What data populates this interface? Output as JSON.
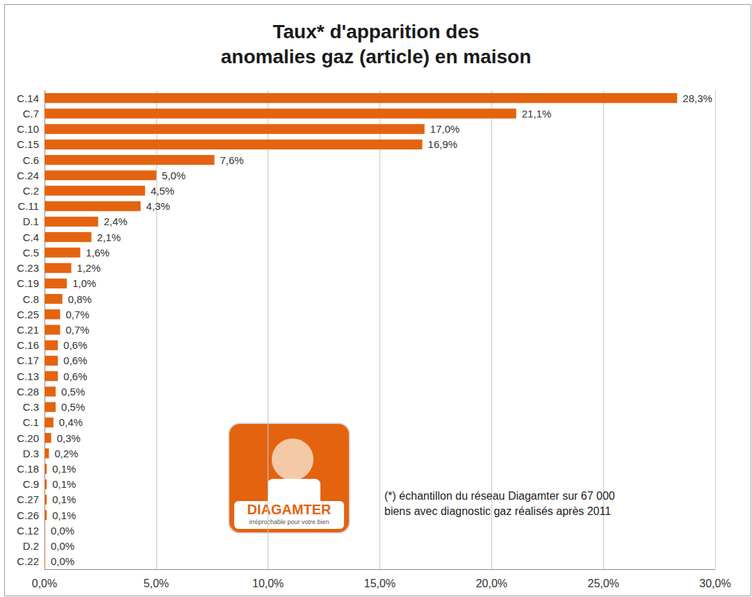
{
  "chart_data": {
    "type": "bar",
    "orientation": "horizontal",
    "title": "Taux* d'apparition des\nanomalies gaz (article) en maison",
    "annotations": [
      "(*) échantillon du réseau Diagamter sur 67 000 biens avec diagnostic gaz réalisés après 2011",
      "DIAGAMTER",
      "irréprochable pour votre bien"
    ],
    "categories": [
      "C.14",
      "C.7",
      "C.10",
      "C.15",
      "C.6",
      "C.24",
      "C.2",
      "C.11",
      "D.1",
      "C.4",
      "C.5",
      "C.23",
      "C.19",
      "C.8",
      "C.25",
      "C.21",
      "C.16",
      "C.17",
      "C.13",
      "C.28",
      "C.3",
      "C.1",
      "C.20",
      "D.3",
      "C.18",
      "C.9",
      "C.27",
      "C.26",
      "C.12",
      "D.2",
      "C.22"
    ],
    "values": [
      28.3,
      21.1,
      17.0,
      16.9,
      7.6,
      5.0,
      4.5,
      4.3,
      2.4,
      2.1,
      1.6,
      1.2,
      1.0,
      0.8,
      0.7,
      0.7,
      0.6,
      0.6,
      0.6,
      0.5,
      0.5,
      0.4,
      0.3,
      0.2,
      0.1,
      0.1,
      0.1,
      0.1,
      0.03,
      0.03,
      0.03
    ],
    "value_labels": [
      "28,3%",
      "21,1%",
      "17,0%",
      "16,9%",
      "7,6%",
      "5,0%",
      "4,5%",
      "4,3%",
      "2,4%",
      "2,1%",
      "1,6%",
      "1,2%",
      "1,0%",
      "0,8%",
      "0,7%",
      "0,7%",
      "0,6%",
      "0,6%",
      "0,6%",
      "0,5%",
      "0,5%",
      "0,4%",
      "0,3%",
      "0,2%",
      "0,1%",
      "0,1%",
      "0,1%",
      "0,1%",
      "0,0%",
      "0,0%",
      "0,0%"
    ],
    "color": "#e4630f",
    "xlim": [
      0,
      30
    ],
    "xticks": [
      {
        "value": 0,
        "label": "0,0%"
      },
      {
        "value": 5,
        "label": "5,0%"
      },
      {
        "value": 10,
        "label": "10,0%"
      },
      {
        "value": 15,
        "label": "15,0%"
      },
      {
        "value": 20,
        "label": "20,0%"
      },
      {
        "value": 25,
        "label": "25,0%"
      },
      {
        "value": 30,
        "label": "30,0%"
      }
    ],
    "grid": true,
    "data_labels": true
  }
}
